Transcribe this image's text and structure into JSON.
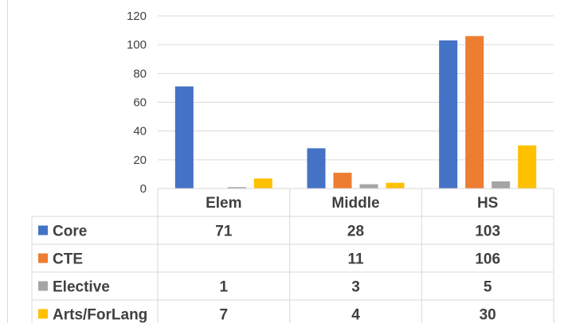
{
  "chart_data": {
    "type": "bar",
    "title": "",
    "xlabel": "",
    "ylabel": "",
    "ylim": [
      0,
      120
    ],
    "yticks": [
      0,
      20,
      40,
      60,
      80,
      100,
      120
    ],
    "grid": true,
    "legend": "data-table",
    "categories": [
      "Elem",
      "Middle",
      "HS"
    ],
    "series": [
      {
        "name": "Core",
        "color": "#4472c4",
        "values": [
          71,
          28,
          103
        ]
      },
      {
        "name": "CTE",
        "color": "#ed7d31",
        "values": [
          null,
          11,
          106
        ]
      },
      {
        "name": "Elective",
        "color": "#a5a5a5",
        "values": [
          1,
          3,
          5
        ]
      },
      {
        "name": "Arts/ForLang",
        "color": "#ffc000",
        "values": [
          7,
          4,
          30
        ]
      }
    ]
  }
}
